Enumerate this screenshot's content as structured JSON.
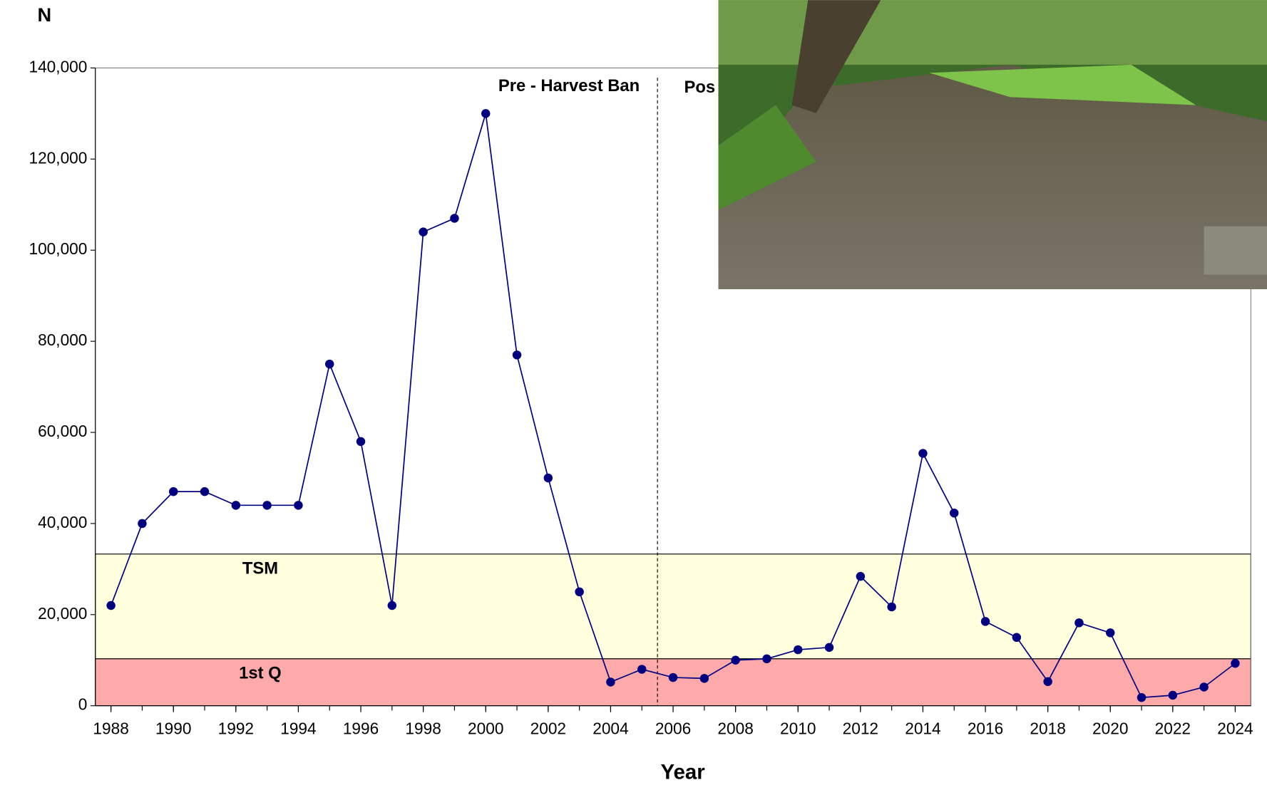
{
  "chart_data": {
    "type": "line",
    "y_label": "N",
    "x_label": "Year",
    "x": [
      1988,
      1989,
      1990,
      1991,
      1992,
      1993,
      1994,
      1995,
      1996,
      1997,
      1998,
      1999,
      2000,
      2001,
      2002,
      2003,
      2004,
      2005,
      2006,
      2007,
      2008,
      2009,
      2010,
      2011,
      2012,
      2013,
      2014,
      2015,
      2016,
      2017,
      2018,
      2019,
      2020,
      2021,
      2022,
      2023,
      2024
    ],
    "series": [
      {
        "color": "#000080",
        "values": [
          22000,
          40000,
          47000,
          47000,
          44000,
          44000,
          44000,
          75000,
          58000,
          22000,
          104000,
          107000,
          130000,
          77000,
          50000,
          25000,
          5200,
          8000,
          6200,
          6000,
          10000,
          10300,
          12300,
          12800,
          28400,
          21700,
          55400,
          42300,
          18500,
          15000,
          5300,
          18200,
          16000,
          1800,
          2300,
          4100,
          9300
        ]
      }
    ],
    "xlim": [
      1987.5,
      2024.5
    ],
    "xticks": [
      1988,
      1990,
      1992,
      1994,
      1996,
      1998,
      2000,
      2002,
      2004,
      2006,
      2008,
      2010,
      2012,
      2014,
      2016,
      2018,
      2020,
      2022,
      2024
    ],
    "ylim": [
      0,
      140000
    ],
    "yticks": [
      0,
      {
        "value": 20000,
        "label": "20,000"
      },
      {
        "value": 40000,
        "label": "40,000"
      },
      {
        "value": 60000,
        "label": "60,000"
      },
      {
        "value": 80000,
        "label": "80,000"
      },
      {
        "value": 100000,
        "label": "100,000"
      },
      {
        "value": 120000,
        "label": "120,000"
      },
      {
        "value": 140000,
        "label": "140,000"
      }
    ],
    "bands": [
      {
        "label": "TSM",
        "range": [
          10300,
          33300
        ],
        "color": "#ffffdd"
      },
      {
        "label": "1st Q",
        "range": [
          0,
          10300
        ],
        "color": "#ffaaaa"
      }
    ],
    "divider": {
      "x": 2005.5,
      "left_label": "Pre - Harvest Ban",
      "right_label": "Pos"
    }
  }
}
